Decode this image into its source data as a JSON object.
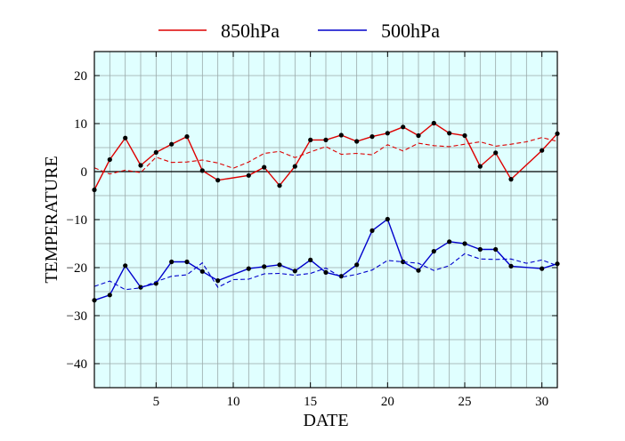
{
  "chart_data": {
    "type": "line",
    "xlabel": "DATE",
    "ylabel": "TEMPERATURE",
    "xlim": [
      1,
      31
    ],
    "ylim": [
      -45,
      25
    ],
    "xticks": [
      5,
      10,
      15,
      20,
      25,
      30
    ],
    "yticks": [
      -40,
      -30,
      -20,
      -10,
      0,
      10,
      20
    ],
    "grid": true,
    "zero_line": true,
    "legend_position": "top",
    "background_color": "#e0ffff",
    "series": [
      {
        "name": "850hPa",
        "color": "#dd0000",
        "style": "solid-markers",
        "points": [
          [
            1,
            -3.8
          ],
          [
            2,
            2.5
          ],
          [
            3,
            7.0
          ],
          [
            4,
            1.3
          ],
          [
            5,
            4.0
          ],
          [
            6,
            5.7
          ],
          [
            7,
            7.3
          ],
          [
            8,
            0.2
          ],
          [
            9,
            -1.8
          ],
          [
            11,
            -0.8
          ],
          [
            12,
            0.9
          ],
          [
            13,
            -2.9
          ],
          [
            14,
            1.1
          ],
          [
            15,
            6.6
          ],
          [
            16,
            6.6
          ],
          [
            17,
            7.6
          ],
          [
            18,
            6.3
          ],
          [
            19,
            7.3
          ],
          [
            20,
            8.0
          ],
          [
            21,
            9.3
          ],
          [
            22,
            7.5
          ],
          [
            23,
            10.1
          ],
          [
            24,
            8.0
          ],
          [
            25,
            7.5
          ],
          [
            26,
            1.1
          ],
          [
            27,
            3.9
          ],
          [
            28,
            -1.6
          ],
          [
            30,
            4.4
          ],
          [
            31,
            7.9
          ]
        ]
      },
      {
        "name": "",
        "color": "#dd0000",
        "style": "dashed",
        "points": [
          [
            1,
            0.8
          ],
          [
            2,
            -0.5
          ],
          [
            3,
            0.3
          ],
          [
            4,
            -0.2
          ],
          [
            5,
            3.0
          ],
          [
            6,
            1.9
          ],
          [
            7,
            2.0
          ],
          [
            8,
            2.4
          ],
          [
            9,
            1.8
          ],
          [
            10,
            0.7
          ],
          [
            11,
            2.0
          ],
          [
            12,
            3.8
          ],
          [
            13,
            4.2
          ],
          [
            14,
            2.9
          ],
          [
            15,
            4.1
          ],
          [
            16,
            5.2
          ],
          [
            17,
            3.6
          ],
          [
            18,
            3.8
          ],
          [
            19,
            3.5
          ],
          [
            20,
            5.6
          ],
          [
            21,
            4.3
          ],
          [
            22,
            5.9
          ],
          [
            23,
            5.4
          ],
          [
            24,
            5.2
          ],
          [
            25,
            5.7
          ],
          [
            26,
            6.2
          ],
          [
            27,
            5.3
          ],
          [
            28,
            5.7
          ],
          [
            29,
            6.2
          ],
          [
            30,
            7.1
          ],
          [
            31,
            6.3
          ]
        ]
      },
      {
        "name": "500hPa",
        "color": "#0000cc",
        "style": "solid-markers",
        "points": [
          [
            1,
            -26.8
          ],
          [
            2,
            -25.7
          ],
          [
            3,
            -19.6
          ],
          [
            4,
            -24.1
          ],
          [
            5,
            -23.3
          ],
          [
            6,
            -18.8
          ],
          [
            7,
            -18.8
          ],
          [
            8,
            -20.8
          ],
          [
            9,
            -22.7
          ],
          [
            11,
            -20.2
          ],
          [
            12,
            -19.8
          ],
          [
            13,
            -19.4
          ],
          [
            14,
            -20.7
          ],
          [
            15,
            -18.4
          ],
          [
            16,
            -21.0
          ],
          [
            17,
            -21.8
          ],
          [
            18,
            -19.4
          ],
          [
            19,
            -12.3
          ],
          [
            20,
            -9.9
          ],
          [
            21,
            -18.8
          ],
          [
            22,
            -20.6
          ],
          [
            23,
            -16.6
          ],
          [
            24,
            -14.6
          ],
          [
            25,
            -15.0
          ],
          [
            26,
            -16.2
          ],
          [
            27,
            -16.2
          ],
          [
            28,
            -19.7
          ],
          [
            30,
            -20.2
          ],
          [
            31,
            -19.2
          ]
        ]
      },
      {
        "name": "",
        "color": "#0000cc",
        "style": "dashed",
        "points": [
          [
            1,
            -23.9
          ],
          [
            2,
            -22.8
          ],
          [
            3,
            -24.6
          ],
          [
            4,
            -24.2
          ],
          [
            5,
            -22.9
          ],
          [
            6,
            -21.8
          ],
          [
            7,
            -21.5
          ],
          [
            8,
            -19.0
          ],
          [
            9,
            -24.1
          ],
          [
            10,
            -22.5
          ],
          [
            11,
            -22.4
          ],
          [
            12,
            -21.3
          ],
          [
            13,
            -21.2
          ],
          [
            14,
            -21.6
          ],
          [
            15,
            -21.2
          ],
          [
            16,
            -20.1
          ],
          [
            17,
            -22.0
          ],
          [
            18,
            -21.4
          ],
          [
            19,
            -20.5
          ],
          [
            20,
            -18.5
          ],
          [
            21,
            -18.8
          ],
          [
            22,
            -19.1
          ],
          [
            23,
            -20.6
          ],
          [
            24,
            -19.6
          ],
          [
            25,
            -17.1
          ],
          [
            26,
            -18.2
          ],
          [
            27,
            -18.3
          ],
          [
            28,
            -18.2
          ],
          [
            29,
            -19.1
          ],
          [
            30,
            -18.4
          ],
          [
            31,
            -19.6
          ]
        ]
      }
    ]
  }
}
